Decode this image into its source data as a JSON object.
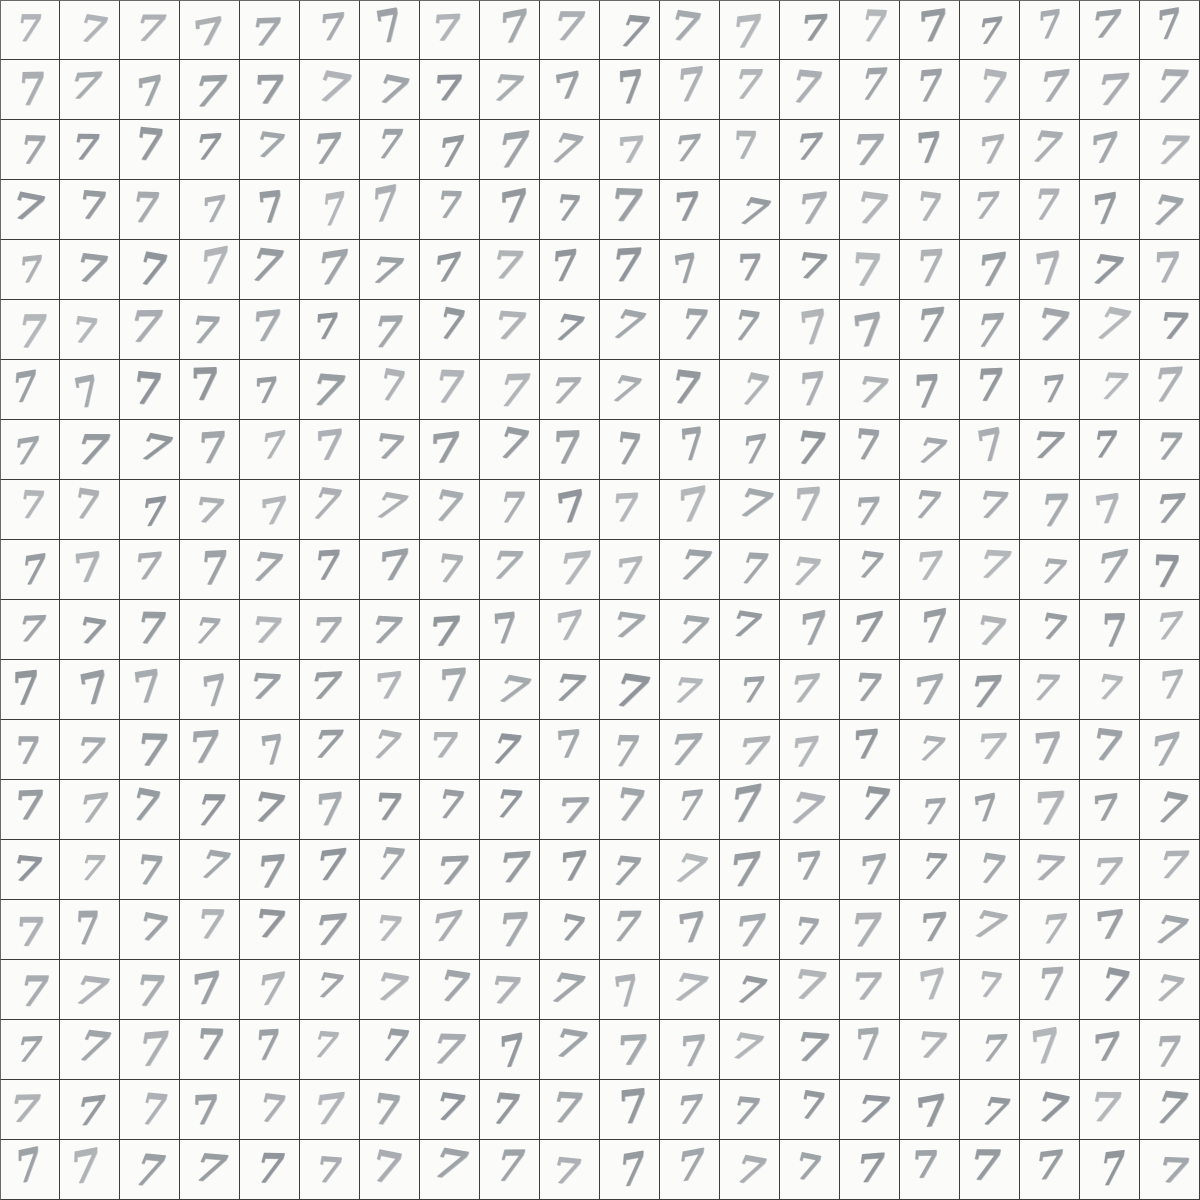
{
  "sheet": {
    "rows": 20,
    "columns": 20,
    "digit": "7",
    "colors": {
      "paper": "#fbfbfa",
      "grid_line": "#3c3c3c",
      "pencil": "#8e9499"
    }
  }
}
